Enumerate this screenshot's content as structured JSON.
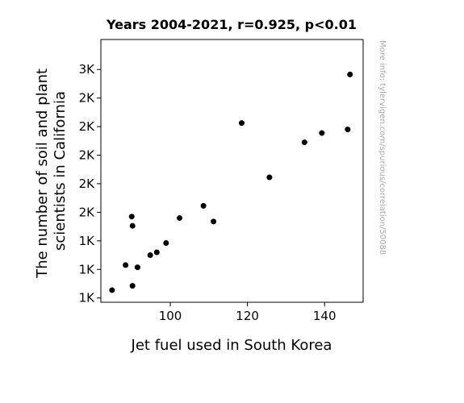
{
  "chart_data": {
    "type": "scatter",
    "title": "Years 2004-2021, r=0.925, p<0.01",
    "xlabel": "Jet fuel used in South Korea",
    "ylabel_lines": [
      "The number of soil and plant",
      "scientists in California"
    ],
    "watermark": "More info: tylervigen.com/spurious/correlation/50088",
    "xlim": [
      82,
      150
    ],
    "ylim": [
      870,
      2710
    ],
    "x_ticks": [
      {
        "value": 100,
        "label": "100"
      },
      {
        "value": 120,
        "label": "120"
      },
      {
        "value": 140,
        "label": "140"
      }
    ],
    "y_ticks": [
      {
        "value": 900,
        "label": "1K"
      },
      {
        "value": 1100,
        "label": "1K"
      },
      {
        "value": 1300,
        "label": "1K"
      },
      {
        "value": 1500,
        "label": "2K"
      },
      {
        "value": 1700,
        "label": "2K"
      },
      {
        "value": 1900,
        "label": "2K"
      },
      {
        "value": 2100,
        "label": "2K"
      },
      {
        "value": 2300,
        "label": "2K"
      },
      {
        "value": 2500,
        "label": "3K"
      }
    ],
    "point_color": "#000000",
    "grid": false,
    "points": [
      {
        "x": 84.9,
        "y": 955
      },
      {
        "x": 88.4,
        "y": 1130
      },
      {
        "x": 90.2,
        "y": 985
      },
      {
        "x": 90.0,
        "y": 1470
      },
      {
        "x": 90.2,
        "y": 1405
      },
      {
        "x": 91.5,
        "y": 1115
      },
      {
        "x": 94.8,
        "y": 1200
      },
      {
        "x": 96.5,
        "y": 1220
      },
      {
        "x": 98.9,
        "y": 1285
      },
      {
        "x": 102.4,
        "y": 1460
      },
      {
        "x": 108.6,
        "y": 1545
      },
      {
        "x": 111.2,
        "y": 1435
      },
      {
        "x": 118.5,
        "y": 2125
      },
      {
        "x": 125.7,
        "y": 1745
      },
      {
        "x": 134.8,
        "y": 1990
      },
      {
        "x": 139.3,
        "y": 2055
      },
      {
        "x": 146.0,
        "y": 2080
      },
      {
        "x": 146.6,
        "y": 2465
      }
    ]
  }
}
